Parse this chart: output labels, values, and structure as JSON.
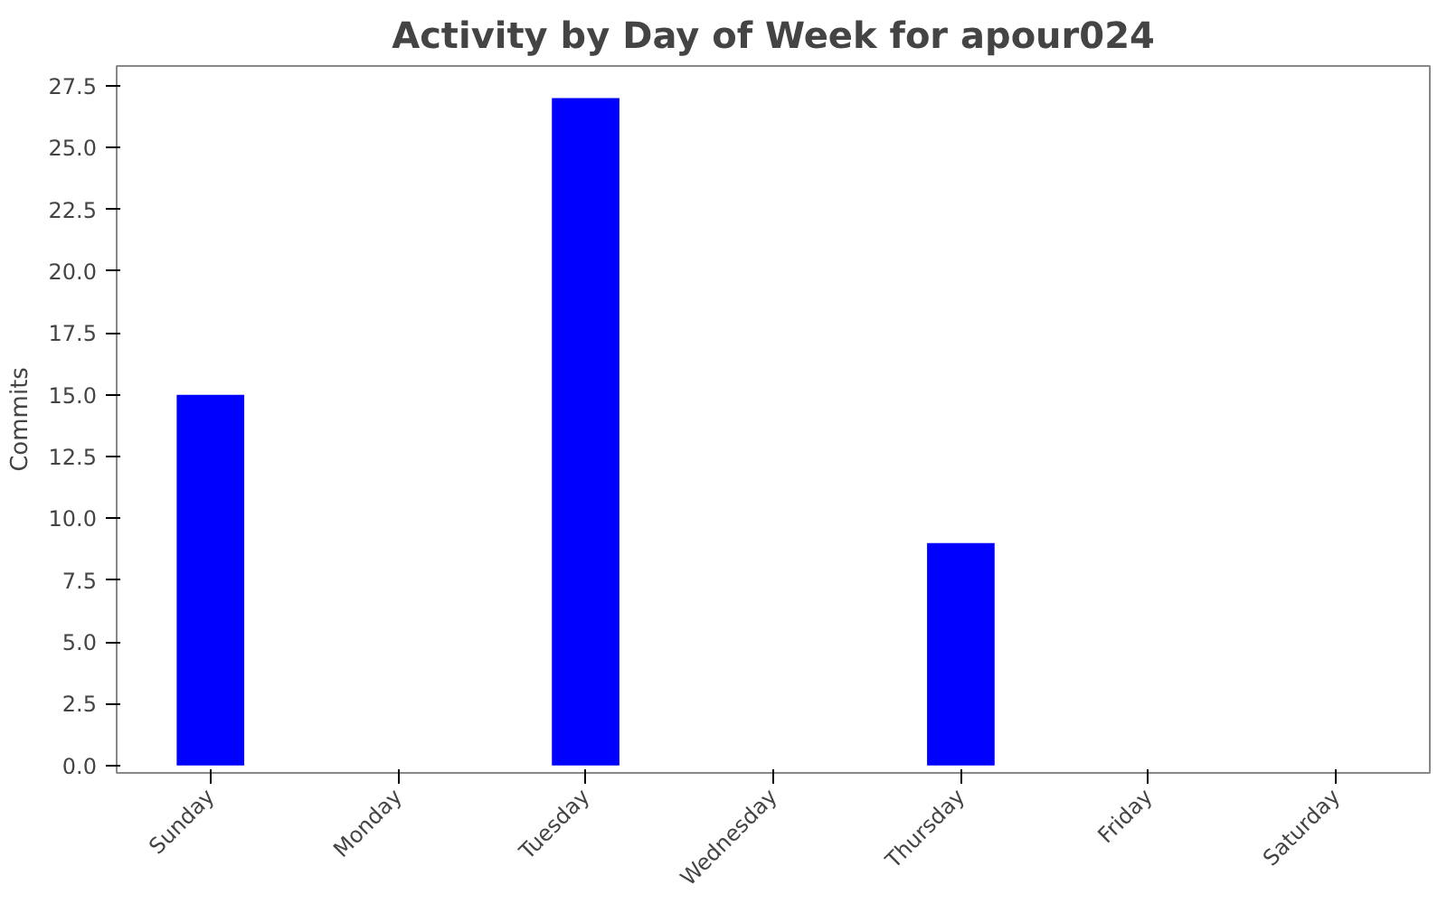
{
  "chart_data": {
    "type": "bar",
    "title": "Activity by Day of Week for apour024",
    "ylabel": "Commits",
    "categories": [
      "Sunday",
      "Monday",
      "Tuesday",
      "Wednesday",
      "Thursday",
      "Friday",
      "Saturday"
    ],
    "series": [
      {
        "color": "#0000ff",
        "values": [
          15,
          0,
          27,
          0,
          9,
          0,
          0
        ]
      }
    ],
    "ylim": [
      -0.3,
      28.3
    ],
    "yticks": [
      {
        "value": 0,
        "label": "0.0"
      },
      {
        "value": 2.5,
        "label": "2.5"
      },
      {
        "value": 5,
        "label": "5.0"
      },
      {
        "value": 7.5,
        "label": "7.5"
      },
      {
        "value": 10,
        "label": "10.0"
      },
      {
        "value": 12.5,
        "label": "12.5"
      },
      {
        "value": 15,
        "label": "15.0"
      },
      {
        "value": 17.5,
        "label": "17.5"
      },
      {
        "value": 20,
        "label": "20.0"
      },
      {
        "value": 22.5,
        "label": "22.5"
      },
      {
        "value": 25,
        "label": "25.0"
      },
      {
        "value": 27.5,
        "label": "27.5"
      }
    ],
    "grid": false
  }
}
